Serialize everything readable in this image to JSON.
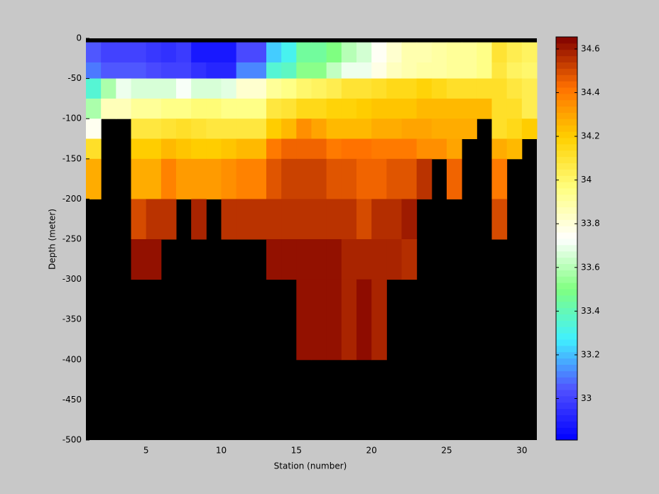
{
  "chart_data": {
    "type": "heatmap",
    "xlabel": "Station (number)",
    "ylabel": "Depth (meter)",
    "x_edges": [
      1,
      2,
      3,
      4,
      5,
      6,
      7,
      8,
      9,
      10,
      11,
      12,
      13,
      14,
      15,
      16,
      17,
      18,
      19,
      20,
      21,
      22,
      23,
      24,
      25,
      26,
      27,
      28,
      29,
      30,
      31
    ],
    "y_edges": [
      -5,
      -30,
      -50,
      -75,
      -100,
      -125,
      -150,
      -200,
      -250,
      -300,
      -400
    ],
    "z": [
      [
        33.05,
        33.0,
        33.0,
        33.0,
        32.97,
        32.95,
        32.98,
        32.88,
        32.88,
        32.88,
        33.02,
        33.02,
        33.22,
        33.3,
        33.45,
        33.45,
        33.5,
        33.6,
        33.65,
        33.75,
        33.82,
        33.88,
        33.88,
        33.9,
        33.92,
        33.92,
        33.95,
        34.1,
        34.05,
        34.02
      ],
      [
        33.1,
        33.05,
        33.05,
        33.05,
        33.02,
        33.0,
        33.0,
        32.95,
        32.92,
        32.92,
        33.12,
        33.12,
        33.35,
        33.38,
        33.52,
        33.52,
        33.62,
        33.7,
        33.7,
        33.78,
        33.85,
        33.88,
        33.9,
        33.9,
        33.92,
        33.92,
        33.95,
        34.08,
        34.02,
        34.0
      ],
      [
        33.35,
        33.58,
        33.7,
        33.66,
        33.66,
        33.66,
        33.72,
        33.66,
        33.66,
        33.68,
        33.82,
        33.82,
        33.92,
        33.95,
        34.0,
        34.02,
        34.05,
        34.1,
        34.1,
        34.12,
        34.15,
        34.15,
        34.18,
        34.15,
        34.12,
        34.12,
        34.12,
        34.12,
        34.08,
        34.05
      ],
      [
        33.58,
        33.86,
        33.86,
        33.92,
        33.92,
        33.95,
        33.95,
        33.98,
        33.98,
        33.95,
        33.95,
        33.95,
        34.08,
        34.1,
        34.15,
        34.15,
        34.18,
        34.18,
        34.2,
        34.22,
        34.22,
        34.22,
        34.25,
        34.25,
        34.25,
        34.25,
        34.25,
        34.12,
        34.12,
        34.05
      ],
      [
        33.76,
        null,
        null,
        34.08,
        34.08,
        34.1,
        34.12,
        34.1,
        34.08,
        34.08,
        34.08,
        34.08,
        34.2,
        34.25,
        34.35,
        34.3,
        34.25,
        34.25,
        34.25,
        34.28,
        34.28,
        34.3,
        34.3,
        34.28,
        34.28,
        34.28,
        null,
        34.12,
        34.15,
        34.2
      ],
      [
        34.12,
        null,
        null,
        34.2,
        34.2,
        34.25,
        34.22,
        34.2,
        34.2,
        34.22,
        34.25,
        34.25,
        34.4,
        34.45,
        34.45,
        34.45,
        34.4,
        34.42,
        34.42,
        34.4,
        34.4,
        34.4,
        34.35,
        34.35,
        34.3,
        null,
        null,
        34.28,
        34.25,
        null
      ],
      [
        34.28,
        null,
        null,
        34.28,
        34.28,
        34.38,
        34.32,
        34.32,
        34.32,
        34.35,
        34.38,
        34.38,
        34.48,
        34.52,
        34.52,
        34.52,
        34.48,
        34.48,
        34.45,
        34.45,
        34.48,
        34.48,
        34.55,
        null,
        34.45,
        null,
        null,
        34.4,
        null,
        null
      ],
      [
        null,
        null,
        null,
        34.5,
        34.55,
        34.55,
        null,
        34.58,
        null,
        34.55,
        34.55,
        34.55,
        34.55,
        34.55,
        34.55,
        34.55,
        34.55,
        34.55,
        34.5,
        34.56,
        34.56,
        34.6,
        null,
        null,
        null,
        null,
        null,
        34.5,
        null,
        null
      ],
      [
        null,
        null,
        null,
        34.62,
        34.62,
        null,
        null,
        null,
        null,
        null,
        null,
        null,
        34.62,
        34.62,
        34.62,
        34.62,
        34.62,
        34.58,
        34.58,
        34.58,
        34.58,
        34.56,
        null,
        null,
        null,
        null,
        null,
        null,
        null,
        null
      ],
      [
        null,
        null,
        null,
        null,
        null,
        null,
        null,
        null,
        null,
        null,
        null,
        null,
        null,
        null,
        34.62,
        34.62,
        34.62,
        34.58,
        34.63,
        34.58,
        null,
        null,
        null,
        null,
        null,
        null,
        null,
        null,
        null,
        null
      ]
    ],
    "xlim": [
      1,
      31
    ],
    "ylim": [
      -500,
      0
    ],
    "xticks": [
      5,
      10,
      15,
      20,
      25,
      30
    ],
    "yticks": [
      0,
      -50,
      -100,
      -150,
      -200,
      -250,
      -300,
      -350,
      -400,
      -450,
      -500
    ],
    "clim": [
      32.81,
      34.655
    ],
    "colorbar_ticks": [
      33,
      33.2,
      33.4,
      33.6,
      33.8,
      34,
      34.2,
      34.4,
      34.6
    ],
    "colormap": [
      "#0000ff",
      "#5050ff",
      "#40f0ff",
      "#80ff80",
      "#ffffff",
      "#ffff80",
      "#ffd000",
      "#ff7000",
      "#800000"
    ],
    "missing_color": "#000000"
  }
}
